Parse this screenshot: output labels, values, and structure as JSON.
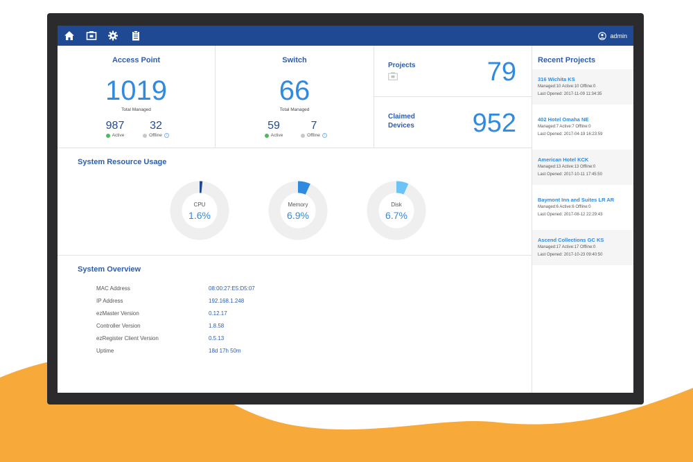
{
  "topbar": {
    "icons": [
      "home-icon",
      "projects-icon",
      "settings-icon",
      "clipboard-icon"
    ],
    "user": "admin"
  },
  "access_point": {
    "title": "Access Point",
    "total": "1019",
    "total_label": "Total Managed",
    "active": "987",
    "active_label": "Active",
    "offline": "32",
    "offline_label": "Offline"
  },
  "switch": {
    "title": "Switch",
    "total": "66",
    "total_label": "Total Managed",
    "active": "59",
    "active_label": "Active",
    "offline": "7",
    "offline_label": "Offline"
  },
  "projects": {
    "label": "Projects",
    "value": "79"
  },
  "claimed": {
    "label_line1": "Claimed",
    "label_line2": "Devices",
    "value": "952"
  },
  "resource": {
    "title": "System Resource Usage",
    "cpu": {
      "label": "CPU",
      "value": "1.6%",
      "fraction": 0.016
    },
    "memory": {
      "label": "Memory",
      "value": "6.9%",
      "fraction": 0.069
    },
    "disk": {
      "label": "Disk",
      "value": "6.7%",
      "fraction": 0.067
    }
  },
  "overview": {
    "title": "System Overview",
    "rows": [
      {
        "key": "MAC Address",
        "value": "08:00:27:E5:D5:07"
      },
      {
        "key": "IP Address",
        "value": "192.168.1.248"
      },
      {
        "key": "ezMaster Version",
        "value": "0.12.17"
      },
      {
        "key": "Controller Version",
        "value": "1.8.58"
      },
      {
        "key": "ezRegister Client Version",
        "value": "0.5.13"
      },
      {
        "key": "Uptime",
        "value": "18d 17h 50m"
      }
    ]
  },
  "recent": {
    "title": "Recent Projects",
    "items": [
      {
        "name": "316 Wichita KS",
        "meta": "Managed:10  Active:10  Offline:0",
        "opened": "Last Opened: 2017-11-09 11:34:35"
      },
      {
        "name": "402 Hotel Omaha NE",
        "meta": "Managed:7  Active:7  Offline:0",
        "opened": "Last Opened: 2017-04-19 16:23:59"
      },
      {
        "name": "American Hotel KCK",
        "meta": "Managed:13  Active:13  Offline:0",
        "opened": "Last Opened: 2017-10-11 17:45:50"
      },
      {
        "name": "Baymont Inn and Suites LR AR",
        "meta": "Managed:6  Active:6  Offline:0",
        "opened": "Last Opened: 2017-08-12 22:29:43"
      },
      {
        "name": "Ascend Collections GC KS",
        "meta": "Managed:17  Active:17  Offline:0",
        "opened": "Last Opened: 2017-10-23 09:40:50"
      }
    ]
  },
  "colors": {
    "topbar": "#1f4a93",
    "accent": "#2f8ae0",
    "title": "#2a5db0",
    "active": "#4cbb5c",
    "offline": "#c8c8c8",
    "cpu": "#1f4a93",
    "memory": "#2f8ae0",
    "disk": "#6cc3f5",
    "wave": "#f7a93a"
  }
}
